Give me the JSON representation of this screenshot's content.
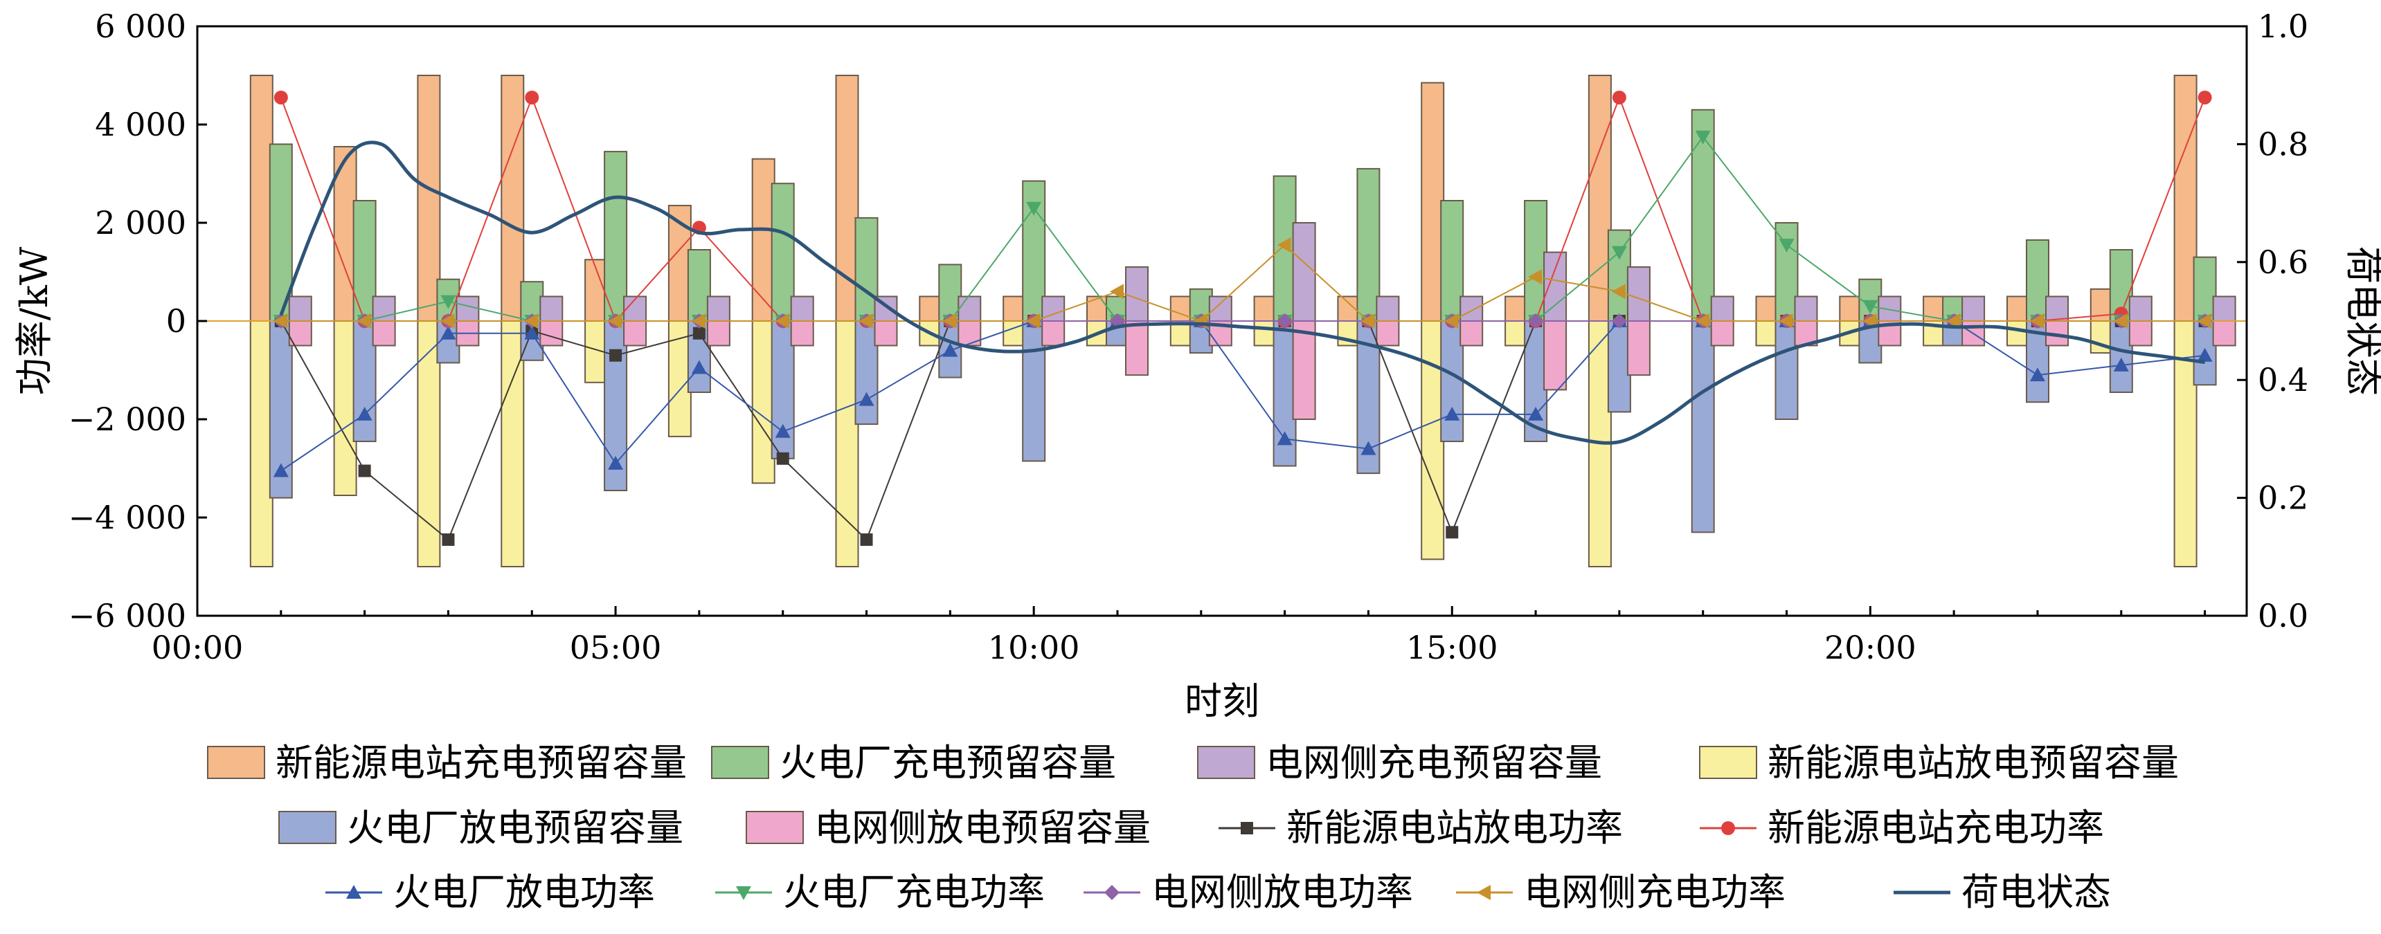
{
  "chart_data": {
    "type": "bar",
    "xlabel": "时刻",
    "ylabel": "功率/kW",
    "y2label": "荷电状态",
    "x_ticks": [
      "00:00",
      "05:00",
      "10:00",
      "15:00",
      "20:00"
    ],
    "y_ticks": [
      "−6 000",
      "−4 000",
      "−2 000",
      "0",
      "2 000",
      "4 000",
      "6 000"
    ],
    "y2_ticks": [
      "0.0",
      "0.2",
      "0.4",
      "0.6",
      "0.8",
      "1.0"
    ],
    "xlim": [
      0,
      24.5
    ],
    "ylim": [
      -6000,
      6000
    ],
    "y2lim": [
      0,
      1
    ],
    "hours": [
      1,
      2,
      3,
      4,
      5,
      6,
      7,
      8,
      9,
      10,
      11,
      12,
      13,
      14,
      15,
      16,
      17,
      18,
      19,
      20,
      21,
      22,
      23,
      24
    ],
    "legend": [
      {
        "key": "s1",
        "label": "新能源电站充电预留容量"
      },
      {
        "key": "s2",
        "label": "火电厂充电预留容量"
      },
      {
        "key": "s3",
        "label": "电网侧充电预留容量"
      },
      {
        "key": "s4",
        "label": "新能源电站放电预留容量"
      },
      {
        "key": "s5",
        "label": "火电厂放电预留容量"
      },
      {
        "key": "s6",
        "label": "电网侧放电预留容量"
      },
      {
        "key": "s7",
        "label": "新能源电站放电功率"
      },
      {
        "key": "s8",
        "label": "新能源电站充电功率"
      },
      {
        "key": "s9",
        "label": "火电厂放电功率"
      },
      {
        "key": "s10",
        "label": "火电厂充电功率"
      },
      {
        "key": "s11",
        "label": "电网侧放电功率"
      },
      {
        "key": "s12",
        "label": "电网侧充电功率"
      },
      {
        "key": "s13",
        "label": "荷电状态"
      }
    ],
    "bar_series": [
      {
        "key": "s1",
        "group": "renew",
        "sign": "charge",
        "color": "#F5B98A",
        "values": [
          5000,
          3550,
          5000,
          5000,
          1250,
          2350,
          3300,
          5000,
          500,
          500,
          500,
          500,
          500,
          500,
          4850,
          500,
          5000,
          0,
          500,
          500,
          500,
          500,
          650,
          5000
        ]
      },
      {
        "key": "s4",
        "group": "renew",
        "sign": "discharge",
        "color": "#F8F09E",
        "values": [
          -5000,
          -3550,
          -5000,
          -5000,
          -1250,
          -2350,
          -3300,
          -5000,
          -500,
          -500,
          -500,
          -500,
          -500,
          -500,
          -4850,
          -500,
          -5000,
          0,
          -500,
          -500,
          -500,
          -500,
          -650,
          -5000
        ]
      },
      {
        "key": "s2",
        "group": "thermal",
        "sign": "charge",
        "color": "#94C88E",
        "values": [
          3600,
          2450,
          850,
          800,
          3450,
          1450,
          2800,
          2100,
          1150,
          2850,
          500,
          650,
          2950,
          3100,
          2450,
          2450,
          1850,
          4300,
          2000,
          850,
          500,
          1650,
          1450,
          1300
        ]
      },
      {
        "key": "s5",
        "group": "thermal",
        "sign": "discharge",
        "color": "#9AAAD6",
        "values": [
          -3600,
          -2450,
          -850,
          -800,
          -3450,
          -1450,
          -2800,
          -2100,
          -1150,
          -2850,
          -500,
          -650,
          -2950,
          -3100,
          -2450,
          -2450,
          -1850,
          -4300,
          -2000,
          -850,
          -500,
          -1650,
          -1450,
          -1300
        ]
      },
      {
        "key": "s3",
        "group": "grid",
        "sign": "charge",
        "color": "#BFA8D2",
        "values": [
          500,
          500,
          500,
          500,
          500,
          500,
          500,
          500,
          500,
          500,
          1100,
          500,
          2000,
          500,
          500,
          1400,
          1100,
          500,
          500,
          500,
          500,
          500,
          500,
          500
        ]
      },
      {
        "key": "s6",
        "group": "grid",
        "sign": "discharge",
        "color": "#EFA8CB",
        "values": [
          -500,
          -500,
          -500,
          -500,
          -500,
          -500,
          -500,
          -500,
          -500,
          -500,
          -1100,
          -500,
          -2000,
          -500,
          -500,
          -1400,
          -1100,
          -500,
          -500,
          -500,
          -500,
          -500,
          -500,
          -500
        ]
      }
    ],
    "line_series": [
      {
        "key": "s7",
        "marker": "square",
        "color": "#3F3A36",
        "xoff": 0,
        "values": [
          0,
          -3050,
          -4450,
          -200,
          -700,
          -250,
          -2800,
          -4450,
          0,
          0,
          0,
          0,
          0,
          0,
          -4300,
          0,
          0,
          0,
          0,
          0,
          0,
          0,
          0,
          0
        ]
      },
      {
        "key": "s8",
        "marker": "circle",
        "color": "#E0403C",
        "xoff": 0,
        "values": [
          4550,
          0,
          0,
          4550,
          0,
          1900,
          0,
          0,
          0,
          0,
          0,
          0,
          0,
          0,
          0,
          0,
          4550,
          0,
          0,
          0,
          0,
          0,
          150,
          4550
        ]
      },
      {
        "key": "s9",
        "marker": "tri-up",
        "color": "#3558A8",
        "xoff": 0,
        "values": [
          -3050,
          -1900,
          -250,
          -250,
          -2900,
          -950,
          -2250,
          -1600,
          -600,
          0,
          0,
          0,
          -2400,
          -2600,
          -1900,
          -1900,
          0,
          0,
          0,
          0,
          0,
          -1100,
          -900,
          -700
        ]
      },
      {
        "key": "s10",
        "marker": "tri-down",
        "color": "#4CA86A",
        "xoff": 0,
        "values": [
          0,
          0,
          400,
          0,
          0,
          0,
          0,
          0,
          0,
          2300,
          0,
          0,
          0,
          0,
          0,
          0,
          1400,
          3750,
          1550,
          300,
          0,
          0,
          0,
          0
        ]
      },
      {
        "key": "s11",
        "marker": "diamond",
        "color": "#8E62A8",
        "xoff": 0,
        "values": [
          0,
          0,
          0,
          0,
          0,
          0,
          0,
          0,
          0,
          0,
          0,
          0,
          0,
          0,
          0,
          0,
          0,
          0,
          0,
          0,
          0,
          0,
          0,
          0
        ]
      },
      {
        "key": "s12",
        "marker": "tri-left",
        "color": "#C8902A",
        "xoff": 0,
        "values": [
          0,
          0,
          0,
          0,
          0,
          0,
          0,
          0,
          0,
          0,
          600,
          0,
          1550,
          0,
          0,
          900,
          600,
          0,
          0,
          0,
          0,
          0,
          0,
          0
        ]
      }
    ],
    "soc": {
      "key": "s13",
      "color": "#2E5478",
      "x": [
        1,
        1.4,
        1.8,
        2.2,
        2.6,
        3,
        3.5,
        4,
        4.5,
        5,
        5.5,
        6,
        6.5,
        7,
        7.5,
        8,
        8.5,
        9,
        9.5,
        10,
        10.5,
        11,
        11.5,
        12,
        12.5,
        13,
        13.5,
        14,
        14.5,
        15,
        15.5,
        16,
        16.5,
        17,
        17.5,
        18,
        18.5,
        19,
        19.5,
        20,
        20.5,
        21,
        21.5,
        22,
        22.5,
        23,
        23.5,
        24
      ],
      "values": [
        0.51,
        0.66,
        0.78,
        0.8,
        0.74,
        0.71,
        0.68,
        0.65,
        0.68,
        0.71,
        0.69,
        0.65,
        0.655,
        0.65,
        0.6,
        0.55,
        0.5,
        0.465,
        0.45,
        0.45,
        0.465,
        0.49,
        0.495,
        0.495,
        0.49,
        0.485,
        0.475,
        0.46,
        0.44,
        0.41,
        0.365,
        0.32,
        0.3,
        0.295,
        0.33,
        0.38,
        0.42,
        0.45,
        0.47,
        0.49,
        0.495,
        0.49,
        0.49,
        0.48,
        0.47,
        0.45,
        0.44,
        0.43
      ]
    }
  }
}
